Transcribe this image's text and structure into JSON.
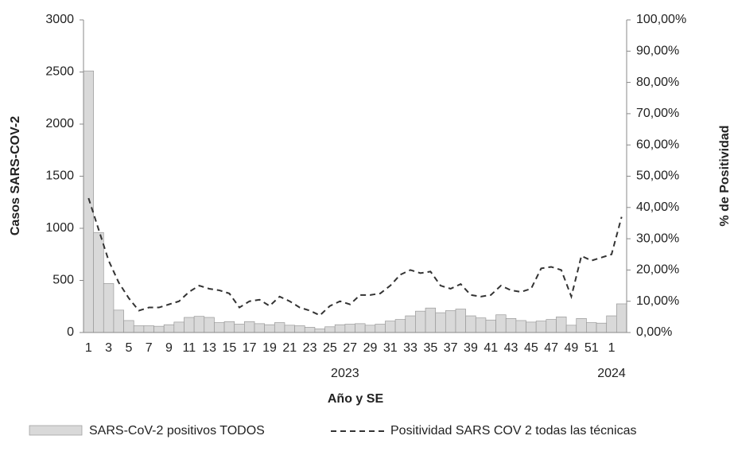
{
  "chart_data": {
    "type": "bar_line",
    "y_label": "Casos SARS-COV-2",
    "y2_label": "% de Positividad",
    "x_label": "Año y SE",
    "categories": [
      "1",
      null,
      "3",
      null,
      "5",
      null,
      "7",
      null,
      "9",
      null,
      "11",
      null,
      "13",
      null,
      "15",
      null,
      "17",
      null,
      "19",
      null,
      "21",
      null,
      "23",
      null,
      "25",
      null,
      "27",
      null,
      "29",
      null,
      "31",
      null,
      "33",
      null,
      "35",
      null,
      "37",
      null,
      "39",
      null,
      "41",
      null,
      "43",
      null,
      "45",
      null,
      "47",
      null,
      "49",
      null,
      "51",
      null,
      "1",
      null
    ],
    "groups": [
      {
        "label": "2023",
        "count": 52
      },
      {
        "label": "2024",
        "count": 2
      }
    ],
    "ylim": [
      0,
      3000
    ],
    "yticks": [
      0,
      500,
      1000,
      1500,
      2000,
      2500,
      3000
    ],
    "y2lim": [
      0,
      100
    ],
    "y2ticks": [
      {
        "value": 0,
        "label": "0,00%"
      },
      {
        "value": 10,
        "label": "10,00%"
      },
      {
        "value": 20,
        "label": "20,00%"
      },
      {
        "value": 30,
        "label": "30,00%"
      },
      {
        "value": 40,
        "label": "40,00%"
      },
      {
        "value": 50,
        "label": "50,00%"
      },
      {
        "value": 60,
        "label": "60,00%"
      },
      {
        "value": 70,
        "label": "70,00%"
      },
      {
        "value": 80,
        "label": "80,00%"
      },
      {
        "value": 90,
        "label": "90,00%"
      },
      {
        "value": 100,
        "label": "100,00%"
      }
    ],
    "series": [
      {
        "name": "SARS-CoV-2 positivos TODOS",
        "type": "bar",
        "color": "#d9d9d9",
        "values": [
          2510,
          960,
          470,
          215,
          115,
          65,
          65,
          60,
          75,
          100,
          145,
          155,
          145,
          95,
          105,
          80,
          105,
          85,
          75,
          95,
          70,
          65,
          50,
          35,
          55,
          75,
          80,
          85,
          70,
          80,
          110,
          125,
          160,
          205,
          235,
          190,
          210,
          225,
          160,
          140,
          120,
          170,
          135,
          115,
          100,
          110,
          125,
          150,
          70,
          135,
          95,
          90,
          160,
          275
        ]
      },
      {
        "name": "Positividad SARS COV 2 todas las técnicas",
        "type": "line",
        "axis": "y2",
        "color": "#333333",
        "values": [
          43,
          33,
          23,
          16,
          11,
          7,
          8,
          8,
          9,
          10,
          13,
          15,
          14,
          13.5,
          12.5,
          8,
          10,
          10.5,
          8.5,
          11.5,
          10,
          8,
          7,
          5.5,
          8.5,
          10,
          9,
          12,
          12,
          12.5,
          15,
          18.5,
          20,
          19,
          19.5,
          15,
          14,
          15.5,
          12,
          11.5,
          12,
          15,
          13.5,
          13,
          14,
          20.5,
          21,
          20,
          11.5,
          24.5,
          23,
          24,
          25,
          37
        ]
      }
    ]
  }
}
